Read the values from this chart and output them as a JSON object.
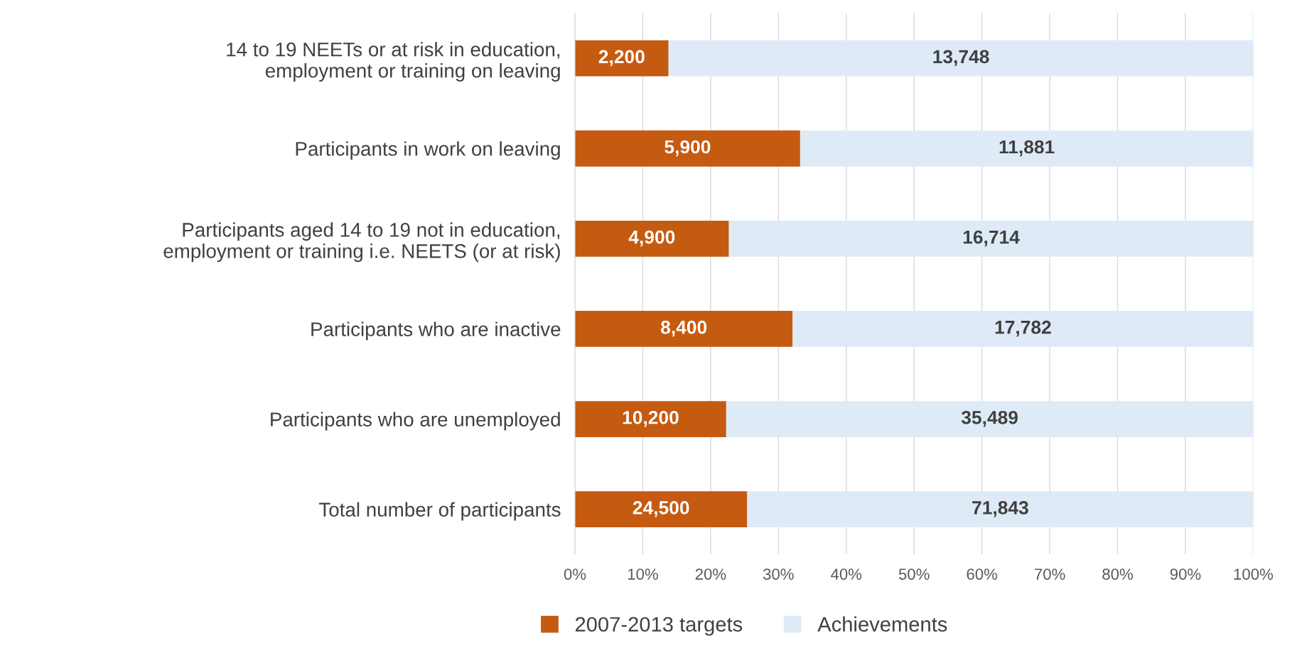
{
  "chart_data": {
    "type": "bar",
    "orientation": "horizontal",
    "stacked": true,
    "categories": [
      "14 to 19 NEETs or at risk in education,\nemployment or training on leaving",
      "Participants in work on leaving",
      "Participants aged 14 to 19 not in education,\nemployment or training i.e. NEETS (or at risk)",
      "Participants who are inactive",
      "Participants who are unemployed",
      "Total number of participants"
    ],
    "series": [
      {
        "name": "2007-2013 targets",
        "color": "#c55a11",
        "values": [
          13.8,
          33.2,
          22.7,
          32.1,
          22.3,
          25.4
        ]
      },
      {
        "name": "Achievements",
        "color": "#deebf7",
        "values": [
          86.2,
          66.8,
          77.3,
          67.9,
          77.7,
          74.6
        ]
      }
    ],
    "annotations": [
      "2,200",
      "13,748",
      "5,900",
      "11,881",
      "4,900",
      "16,714",
      "8,400",
      "17,782",
      "10,200",
      "35,489",
      "24,500",
      "71,843"
    ],
    "xlim": [
      0,
      100
    ],
    "xticks": [
      {
        "value": 0,
        "label": "0%"
      },
      {
        "value": 10,
        "label": "10%"
      },
      {
        "value": 20,
        "label": "20%"
      },
      {
        "value": 30,
        "label": "30%"
      },
      {
        "value": 40,
        "label": "40%"
      },
      {
        "value": 50,
        "label": "50%"
      },
      {
        "value": 60,
        "label": "60%"
      },
      {
        "value": 70,
        "label": "70%"
      },
      {
        "value": 80,
        "label": "80%"
      },
      {
        "value": 90,
        "label": "90%"
      },
      {
        "value": 100,
        "label": "100%"
      }
    ],
    "grid": "x",
    "legend": "bottom"
  }
}
